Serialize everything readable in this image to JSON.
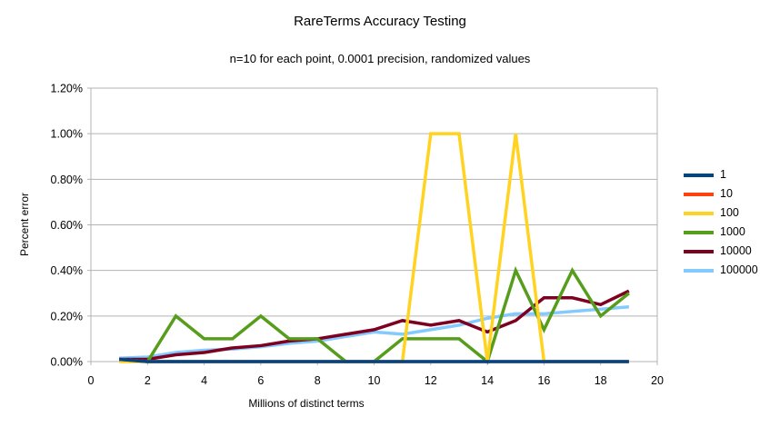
{
  "title": "RareTerms Accuracy Testing",
  "subtitle": "n=10 for each point, 0.0001 precision, randomized values",
  "chart_data": {
    "type": "line",
    "title": "RareTerms Accuracy Testing",
    "subtitle": "n=10 for each point, 0.0001 precision, randomized values",
    "xlabel": "Millions of distinct terms",
    "ylabel": "Percent error",
    "xlim": [
      0,
      20
    ],
    "ylim_percent": [
      0,
      1.2
    ],
    "x_ticks": [
      0,
      2,
      4,
      6,
      8,
      10,
      12,
      14,
      16,
      18,
      20
    ],
    "y_ticks_percent": [
      0.0,
      0.2,
      0.4,
      0.6,
      0.8,
      1.0,
      1.2
    ],
    "y_tick_labels": [
      "0.00%",
      "0.20%",
      "0.40%",
      "0.60%",
      "0.80%",
      "1.00%",
      "1.20%"
    ],
    "grid": "horizontal",
    "legend_position": "right",
    "x": [
      1,
      2,
      3,
      4,
      5,
      6,
      7,
      8,
      9,
      10,
      11,
      12,
      13,
      14,
      15,
      16,
      17,
      18,
      19
    ],
    "series": [
      {
        "name": "1",
        "color": "#004586",
        "values_percent": [
          0.01,
          0,
          0,
          0,
          0,
          0,
          0,
          0,
          0,
          0,
          0,
          0,
          0,
          0,
          0,
          0,
          0,
          0,
          0
        ]
      },
      {
        "name": "10",
        "color": "#FF420E",
        "values_percent": [
          0.01,
          0,
          0,
          0,
          0,
          0,
          0,
          0,
          0,
          0,
          0,
          0,
          0,
          0,
          0,
          0,
          0,
          0,
          0
        ]
      },
      {
        "name": "100",
        "color": "#FFD320",
        "values_percent": [
          0,
          0,
          0,
          0,
          0,
          0,
          0,
          0,
          0,
          0,
          0,
          1.0,
          1.0,
          0,
          1.0,
          0,
          0,
          0,
          0
        ]
      },
      {
        "name": "1000",
        "color": "#579D1C",
        "values_percent": [
          0.01,
          0,
          0.2,
          0.1,
          0.1,
          0.2,
          0.1,
          0.1,
          0,
          0,
          0.1,
          0.1,
          0.1,
          0,
          0.4,
          0.14,
          0.4,
          0.2,
          0.3
        ]
      },
      {
        "name": "10000",
        "color": "#7E0021",
        "values_percent": [
          0.01,
          0.01,
          0.03,
          0.04,
          0.06,
          0.07,
          0.09,
          0.1,
          0.12,
          0.14,
          0.18,
          0.16,
          0.18,
          0.13,
          0.18,
          0.28,
          0.28,
          0.25,
          0.31
        ]
      },
      {
        "name": "100000",
        "color": "#83CAFF",
        "values_percent": [
          0.015,
          0.02,
          0.04,
          0.05,
          0.055,
          0.065,
          0.08,
          0.09,
          0.11,
          0.13,
          0.12,
          0.14,
          0.16,
          0.19,
          0.21,
          0.21,
          0.22,
          0.23,
          0.24
        ]
      }
    ],
    "draw_order": [
      "100000",
      "10000",
      "1000",
      "100",
      "10",
      "1"
    ]
  },
  "colors": {
    "axis": "#b3b3b3",
    "text": "#000000",
    "background": "#ffffff"
  }
}
